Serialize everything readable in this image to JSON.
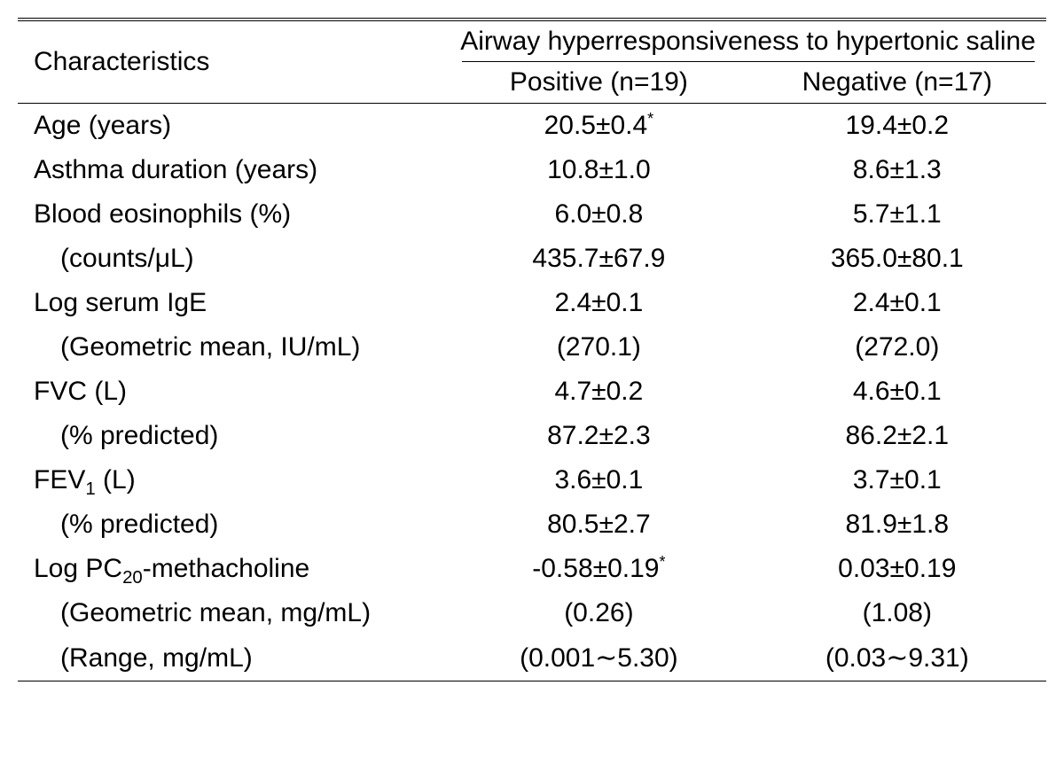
{
  "table": {
    "header": {
      "characteristics": "Characteristics",
      "group_title": "Airway hyperresponsiveness to hypertonic saline",
      "positive": "Positive (n=19)",
      "negative": "Negative (n=17)"
    },
    "rows": [
      {
        "label": "Age (years)",
        "pos": "20.5±0.4",
        "pos_sup": "*",
        "neg": "19.4±0.2",
        "indent": false
      },
      {
        "label": "Asthma duration (years)",
        "pos": "10.8±1.0",
        "neg": "8.6±1.3",
        "indent": false
      },
      {
        "label": "Blood eosinophils (%)",
        "pos": "6.0±0.8",
        "neg": "5.7±1.1",
        "indent": false
      },
      {
        "label": "(counts/μL)",
        "pos": "435.7±67.9",
        "neg": "365.0±80.1",
        "indent": true
      },
      {
        "label": "Log serum IgE",
        "pos": "2.4±0.1",
        "neg": "2.4±0.1",
        "indent": false
      },
      {
        "label": "(Geometric mean, IU/mL)",
        "pos": "(270.1)",
        "neg": "(272.0)",
        "indent": true
      },
      {
        "label": "FVC (L)",
        "pos": "4.7±0.2",
        "neg": "4.6±0.1",
        "indent": false
      },
      {
        "label": "(% predicted)",
        "pos": "87.2±2.3",
        "neg": "86.2±2.1",
        "indent": true
      },
      {
        "label_html": "FEV<sub>1</sub> (L)",
        "pos": "3.6±0.1",
        "neg": "3.7±0.1",
        "indent": false
      },
      {
        "label": "(% predicted)",
        "pos": "80.5±2.7",
        "neg": "81.9±1.8",
        "indent": true
      },
      {
        "label_html": "Log PC<sub>20</sub>-methacholine",
        "pos": "-0.58±0.19",
        "pos_sup": "*",
        "neg": "0.03±0.19",
        "indent": false
      },
      {
        "label": "(Geometric mean, mg/mL)",
        "pos": "(0.26)",
        "neg": "(1.08)",
        "indent": true
      },
      {
        "label": "(Range, mg/mL)",
        "pos": "(0.001∼5.30)",
        "neg": "(0.03∼9.31)",
        "indent": true
      }
    ],
    "colors": {
      "text": "#000000",
      "background": "#ffffff",
      "border": "#000000"
    },
    "font": {
      "family": "Arial, Helvetica, sans-serif",
      "size_pt": 30
    }
  }
}
